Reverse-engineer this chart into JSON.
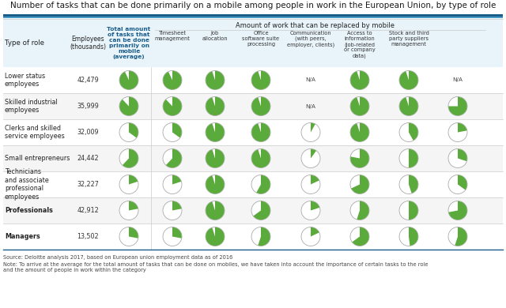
{
  "title": "Number of tasks that can be done primarily on a mobile among people in work in the European Union, by type of role",
  "bg_color": "#ffffff",
  "blue_dark": "#1a5c8a",
  "blue_light": "#4a9cc7",
  "green": "#5aaa3c",
  "header_bg": "#e8f3fa",
  "row_alt_bg": "#f5f5f5",
  "gray_line": "#cccccc",
  "col1_header": "Type of role",
  "col2_header": "Employees\n(thousands)",
  "col3_header": "Total amount\nof tasks that\ncan be done\nprimarily on\nmobile\n(average)",
  "sub_header": "Amount of work that can be replaced by mobile",
  "sub_cols": [
    "Timesheet\nmanagement",
    "Job\nallocation",
    "Office\nsoftware suite\nprocessing",
    "Communication\n(with peers,\nemployer, clients)",
    "Access to\ninformation\n(job-related\nor company\ndata)",
    "Stock and third\nparty suppliers\nmanagement"
  ],
  "rows": [
    {
      "role": "Lower status\nemployees",
      "bold_role": false,
      "employees": "42,479",
      "total_pct": 0.93,
      "sub_pcts": [
        0.93,
        0.95,
        0.95,
        null,
        0.95,
        0.95,
        null
      ]
    },
    {
      "role": "Skilled industrial\nemployees",
      "bold_role": false,
      "employees": "35,999",
      "total_pct": 0.88,
      "sub_pcts": [
        0.88,
        0.95,
        0.95,
        null,
        0.95,
        0.95,
        0.75
      ]
    },
    {
      "role": "Clerks and skilled\nservice employees",
      "bold_role": false,
      "employees": "32,009",
      "total_pct": 0.35,
      "sub_pcts": [
        0.35,
        0.95,
        0.95,
        0.08,
        0.95,
        0.42,
        0.22
      ]
    },
    {
      "role": "Small entrepreneurs",
      "bold_role": false,
      "employees": "24,442",
      "total_pct": 0.62,
      "sub_pcts": [
        0.62,
        0.95,
        0.95,
        0.1,
        0.78,
        0.5,
        0.3
      ]
    },
    {
      "role": "Technicians\nand associate\nprofessional\nemployees",
      "bold_role": false,
      "employees": "32,227",
      "total_pct": 0.2,
      "sub_pcts": [
        0.2,
        0.95,
        0.58,
        0.18,
        0.68,
        0.45,
        0.35
      ]
    },
    {
      "role": "Professionals",
      "bold_role": true,
      "employees": "42,912",
      "total_pct": 0.22,
      "sub_pcts": [
        0.22,
        0.95,
        0.65,
        0.2,
        0.55,
        0.5,
        0.72
      ]
    },
    {
      "role": "Managers",
      "bold_role": true,
      "employees": "13,502",
      "total_pct": 0.28,
      "sub_pcts": [
        0.28,
        0.95,
        0.55,
        0.18,
        0.65,
        0.48,
        0.55
      ]
    }
  ],
  "source_text": "Source: Deloitte analysis 2017, based on European union employment data as of 2016",
  "note_text": "Note: To arrive at the average for the total amount of tasks that can be done on mobiles, we have taken into account the importance of certain tasks to the role\nand the amount of people in work within the category"
}
